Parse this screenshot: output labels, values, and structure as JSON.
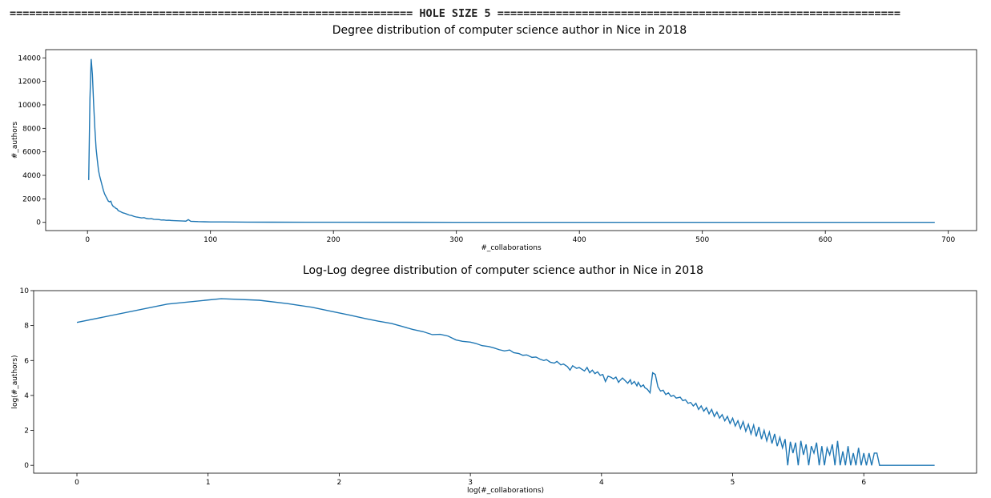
{
  "header": {
    "banner": "============================================================== HOLE SIZE 5 =============================================================="
  },
  "chart_data": [
    {
      "type": "line",
      "title": "Degree distribution of computer science author in Nice in 2018",
      "xlabel": "#_collaborations",
      "ylabel": "#_authors",
      "xlim": [
        -34,
        723
      ],
      "ylim": [
        -700,
        14700
      ],
      "xticks": [
        0,
        100,
        200,
        300,
        400,
        500,
        600,
        700
      ],
      "yticks": [
        0,
        2000,
        4000,
        6000,
        8000,
        10000,
        12000,
        14000
      ],
      "grid": false,
      "legend": "none",
      "series": [
        {
          "color": "#1f77b4",
          "points": [
            [
              1,
              3600
            ],
            [
              2,
              10500
            ],
            [
              3,
              13900
            ],
            [
              4,
              12600
            ],
            [
              5,
              10100
            ],
            [
              6,
              8000
            ],
            [
              7,
              6300
            ],
            [
              8,
              5300
            ],
            [
              9,
              4400
            ],
            [
              10,
              3900
            ],
            [
              11,
              3500
            ],
            [
              12,
              3100
            ],
            [
              13,
              2700
            ],
            [
              14,
              2400
            ],
            [
              15,
              2200
            ],
            [
              16,
              2000
            ],
            [
              17,
              1800
            ],
            [
              18,
              1750
            ],
            [
              19,
              1800
            ],
            [
              20,
              1500
            ],
            [
              21,
              1350
            ],
            [
              22,
              1300
            ],
            [
              23,
              1200
            ],
            [
              24,
              1150
            ],
            [
              25,
              1000
            ],
            [
              26,
              950
            ],
            [
              27,
              900
            ],
            [
              28,
              850
            ],
            [
              29,
              800
            ],
            [
              30,
              780
            ],
            [
              32,
              700
            ],
            [
              34,
              620
            ],
            [
              36,
              580
            ],
            [
              38,
              500
            ],
            [
              40,
              450
            ],
            [
              42,
              420
            ],
            [
              44,
              380
            ],
            [
              46,
              400
            ],
            [
              48,
              330
            ],
            [
              50,
              300
            ],
            [
              52,
              320
            ],
            [
              54,
              260
            ],
            [
              56,
              250
            ],
            [
              58,
              240
            ],
            [
              60,
              200
            ],
            [
              62,
              210
            ],
            [
              64,
              170
            ],
            [
              66,
              180
            ],
            [
              68,
              160
            ],
            [
              70,
              150
            ],
            [
              72,
              140
            ],
            [
              74,
              130
            ],
            [
              76,
              120
            ],
            [
              78,
              110
            ],
            [
              80,
              100
            ],
            [
              82,
              230
            ],
            [
              84,
              90
            ],
            [
              86,
              80
            ],
            [
              88,
              70
            ],
            [
              90,
              60
            ],
            [
              95,
              50
            ],
            [
              100,
              40
            ],
            [
              110,
              35
            ],
            [
              120,
              25
            ],
            [
              130,
              20
            ],
            [
              150,
              15
            ],
            [
              200,
              10
            ],
            [
              300,
              5
            ],
            [
              400,
              3
            ],
            [
              500,
              2
            ],
            [
              600,
              1
            ],
            [
              689,
              1
            ]
          ]
        }
      ]
    },
    {
      "type": "line",
      "title": "Log-Log degree distribution of computer science author in Nice in 2018",
      "xlabel": "log(#_collaborations)",
      "ylabel": "log(#_authors)",
      "xlim": [
        -0.33,
        6.86
      ],
      "ylim": [
        -0.45,
        10
      ],
      "xticks": [
        0,
        1,
        2,
        3,
        4,
        5,
        6
      ],
      "yticks": [
        0,
        2,
        4,
        6,
        8,
        10
      ],
      "grid": false,
      "legend": "none",
      "series": [
        {
          "color": "#1f77b4",
          "points": [
            [
              0,
              8.18
            ],
            [
              0.69,
              9.23
            ],
            [
              1.1,
              9.54
            ],
            [
              1.39,
              9.45
            ],
            [
              1.61,
              9.25
            ],
            [
              1.79,
              9.05
            ],
            [
              1.95,
              8.8
            ],
            [
              2.08,
              8.6
            ],
            [
              2.2,
              8.4
            ],
            [
              2.3,
              8.25
            ],
            [
              2.4,
              8.12
            ],
            [
              2.48,
              7.95
            ],
            [
              2.56,
              7.78
            ],
            [
              2.64,
              7.65
            ],
            [
              2.71,
              7.48
            ],
            [
              2.77,
              7.5
            ],
            [
              2.83,
              7.4
            ],
            [
              2.89,
              7.18
            ],
            [
              2.94,
              7.1
            ],
            [
              3.0,
              7.05
            ],
            [
              3.04,
              6.98
            ],
            [
              3.09,
              6.85
            ],
            [
              3.14,
              6.8
            ],
            [
              3.18,
              6.72
            ],
            [
              3.22,
              6.62
            ],
            [
              3.26,
              6.55
            ],
            [
              3.3,
              6.6
            ],
            [
              3.33,
              6.45
            ],
            [
              3.37,
              6.4
            ],
            [
              3.4,
              6.3
            ],
            [
              3.43,
              6.32
            ],
            [
              3.47,
              6.18
            ],
            [
              3.5,
              6.2
            ],
            [
              3.53,
              6.08
            ],
            [
              3.56,
              6.0
            ],
            [
              3.58,
              6.05
            ],
            [
              3.61,
              5.9
            ],
            [
              3.64,
              5.85
            ],
            [
              3.66,
              5.95
            ],
            [
              3.69,
              5.75
            ],
            [
              3.71,
              5.8
            ],
            [
              3.74,
              5.65
            ],
            [
              3.76,
              5.45
            ],
            [
              3.78,
              5.7
            ],
            [
              3.81,
              5.55
            ],
            [
              3.83,
              5.6
            ],
            [
              3.85,
              5.5
            ],
            [
              3.87,
              5.4
            ],
            [
              3.89,
              5.6
            ],
            [
              3.91,
              5.3
            ],
            [
              3.93,
              5.45
            ],
            [
              3.95,
              5.25
            ],
            [
              3.97,
              5.35
            ],
            [
              3.99,
              5.15
            ],
            [
              4.01,
              5.2
            ],
            [
              4.03,
              4.8
            ],
            [
              4.05,
              5.1
            ],
            [
              4.07,
              5.05
            ],
            [
              4.09,
              4.95
            ],
            [
              4.11,
              5.05
            ],
            [
              4.13,
              4.75
            ],
            [
              4.14,
              4.85
            ],
            [
              4.16,
              5.0
            ],
            [
              4.18,
              4.85
            ],
            [
              4.2,
              4.7
            ],
            [
              4.22,
              4.9
            ],
            [
              4.23,
              4.65
            ],
            [
              4.25,
              4.8
            ],
            [
              4.27,
              4.55
            ],
            [
              4.28,
              4.75
            ],
            [
              4.3,
              4.5
            ],
            [
              4.32,
              4.6
            ],
            [
              4.33,
              4.45
            ],
            [
              4.35,
              4.35
            ],
            [
              4.37,
              4.15
            ],
            [
              4.39,
              5.3
            ],
            [
              4.41,
              5.2
            ],
            [
              4.43,
              4.5
            ],
            [
              4.45,
              4.25
            ],
            [
              4.47,
              4.3
            ],
            [
              4.49,
              4.05
            ],
            [
              4.51,
              4.15
            ],
            [
              4.53,
              3.95
            ],
            [
              4.55,
              4.0
            ],
            [
              4.57,
              3.85
            ],
            [
              4.6,
              3.9
            ],
            [
              4.62,
              3.7
            ],
            [
              4.64,
              3.75
            ],
            [
              4.66,
              3.55
            ],
            [
              4.68,
              3.6
            ],
            [
              4.7,
              3.4
            ],
            [
              4.72,
              3.55
            ],
            [
              4.74,
              3.2
            ],
            [
              4.76,
              3.4
            ],
            [
              4.78,
              3.1
            ],
            [
              4.8,
              3.3
            ],
            [
              4.82,
              2.95
            ],
            [
              4.84,
              3.2
            ],
            [
              4.86,
              2.8
            ],
            [
              4.88,
              3.05
            ],
            [
              4.9,
              2.7
            ],
            [
              4.92,
              2.9
            ],
            [
              4.94,
              2.55
            ],
            [
              4.96,
              2.8
            ],
            [
              4.98,
              2.4
            ],
            [
              5.0,
              2.7
            ],
            [
              5.02,
              2.25
            ],
            [
              5.04,
              2.55
            ],
            [
              5.06,
              2.1
            ],
            [
              5.08,
              2.5
            ],
            [
              5.1,
              1.95
            ],
            [
              5.12,
              2.35
            ],
            [
              5.14,
              1.8
            ],
            [
              5.16,
              2.3
            ],
            [
              5.18,
              1.65
            ],
            [
              5.2,
              2.2
            ],
            [
              5.22,
              1.5
            ],
            [
              5.24,
              2.0
            ],
            [
              5.26,
              1.4
            ],
            [
              5.28,
              1.9
            ],
            [
              5.3,
              1.25
            ],
            [
              5.32,
              1.8
            ],
            [
              5.34,
              1.1
            ],
            [
              5.36,
              1.6
            ],
            [
              5.38,
              1.0
            ],
            [
              5.4,
              1.5
            ],
            [
              5.42,
              0.0
            ],
            [
              5.44,
              1.35
            ],
            [
              5.46,
              0.7
            ],
            [
              5.48,
              1.3
            ],
            [
              5.5,
              0.0
            ],
            [
              5.52,
              1.4
            ],
            [
              5.54,
              0.6
            ],
            [
              5.56,
              1.2
            ],
            [
              5.58,
              0.0
            ],
            [
              5.6,
              1.1
            ],
            [
              5.62,
              0.7
            ],
            [
              5.64,
              1.3
            ],
            [
              5.66,
              0.0
            ],
            [
              5.68,
              1.1
            ],
            [
              5.7,
              0.0
            ],
            [
              5.72,
              1.0
            ],
            [
              5.74,
              0.6
            ],
            [
              5.76,
              1.2
            ],
            [
              5.78,
              0.0
            ],
            [
              5.8,
              1.4
            ],
            [
              5.82,
              0.0
            ],
            [
              5.84,
              0.8
            ],
            [
              5.86,
              0.0
            ],
            [
              5.88,
              1.1
            ],
            [
              5.9,
              0.0
            ],
            [
              5.92,
              0.7
            ],
            [
              5.94,
              0.0
            ],
            [
              5.96,
              1.0
            ],
            [
              5.98,
              0.0
            ],
            [
              6.0,
              0.7
            ],
            [
              6.02,
              0.0
            ],
            [
              6.04,
              0.7
            ],
            [
              6.06,
              0.0
            ],
            [
              6.08,
              0.7
            ],
            [
              6.1,
              0.7
            ],
            [
              6.12,
              0.0
            ],
            [
              6.3,
              0.0
            ],
            [
              6.54,
              0.0
            ]
          ]
        }
      ]
    }
  ]
}
